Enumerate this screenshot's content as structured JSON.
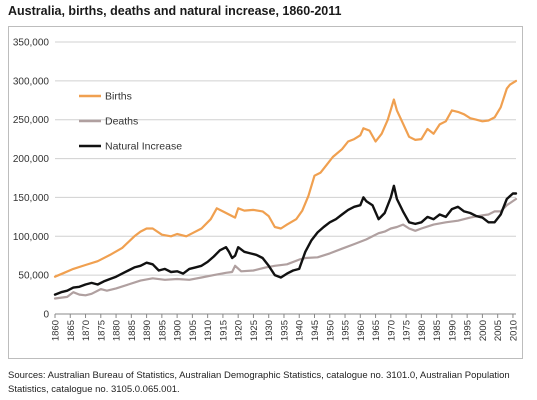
{
  "title": "Australia, births, deaths and natural increase, 1860-2011",
  "source": "Sources: Australian Bureau of Statistics, Australian Demographic Statistics, catalogue no. 3101.0, Australian Population Statistics, catalogue no. 3105.0.065.001.",
  "chart_data": {
    "type": "line",
    "title": "Australia, births, deaths and natural increase, 1860-2011",
    "xlabel": "",
    "ylabel": "",
    "xlim": [
      1860,
      2011
    ],
    "ylim": [
      0,
      350000
    ],
    "yticks": [
      0,
      50000,
      100000,
      150000,
      200000,
      250000,
      300000,
      350000
    ],
    "ytick_labels": [
      "0",
      "50,000",
      "100,000",
      "150,000",
      "200,000",
      "250,000",
      "300,000",
      "350,000"
    ],
    "xticks": [
      1860,
      1865,
      1870,
      1875,
      1880,
      1885,
      1890,
      1895,
      1900,
      1905,
      1910,
      1915,
      1920,
      1925,
      1930,
      1935,
      1940,
      1945,
      1950,
      1955,
      1960,
      1965,
      1970,
      1975,
      1980,
      1985,
      1990,
      1995,
      2000,
      2005,
      2010
    ],
    "grid": "horizontal",
    "legend": "inside-top-left",
    "series": [
      {
        "name": "Births",
        "color": "#f0a050",
        "x": [
          1860,
          1863,
          1866,
          1870,
          1874,
          1878,
          1882,
          1886,
          1888,
          1890,
          1892,
          1895,
          1898,
          1900,
          1903,
          1905,
          1908,
          1911,
          1913,
          1915,
          1917,
          1919,
          1920,
          1922,
          1925,
          1928,
          1930,
          1932,
          1934,
          1936,
          1939,
          1941,
          1943,
          1945,
          1947,
          1949,
          1951,
          1954,
          1956,
          1958,
          1960,
          1961,
          1963,
          1965,
          1967,
          1969,
          1971,
          1972,
          1974,
          1976,
          1978,
          1980,
          1982,
          1984,
          1986,
          1988,
          1990,
          1992,
          1994,
          1996,
          1998,
          2000,
          2002,
          2004,
          2006,
          2008,
          2009,
          2011
        ],
        "values": [
          48000,
          53000,
          58000,
          63000,
          68000,
          76000,
          85000,
          100000,
          106000,
          110000,
          110000,
          102000,
          100000,
          103000,
          100000,
          104000,
          110000,
          122000,
          136000,
          132000,
          128000,
          124000,
          136000,
          133000,
          134000,
          132000,
          126000,
          112000,
          110000,
          115000,
          122000,
          133000,
          152000,
          178000,
          182000,
          192000,
          202000,
          212000,
          222000,
          225000,
          230000,
          239000,
          236000,
          222000,
          232000,
          250000,
          276000,
          262000,
          245000,
          228000,
          224000,
          225000,
          238000,
          232000,
          244000,
          248000,
          262000,
          260000,
          257000,
          252000,
          250000,
          248000,
          249000,
          253000,
          266000,
          290000,
          295000,
          300000
        ]
      },
      {
        "name": "Deaths",
        "color": "#b0a0a0",
        "x": [
          1860,
          1864,
          1866,
          1868,
          1870,
          1872,
          1875,
          1877,
          1880,
          1884,
          1888,
          1892,
          1896,
          1900,
          1904,
          1908,
          1912,
          1916,
          1918,
          1919,
          1921,
          1925,
          1929,
          1932,
          1936,
          1940,
          1942,
          1946,
          1950,
          1954,
          1958,
          1962,
          1966,
          1968,
          1970,
          1972,
          1974,
          1976,
          1978,
          1980,
          1984,
          1988,
          1992,
          1996,
          2000,
          2002,
          2004,
          2006,
          2008,
          2011
        ],
        "values": [
          20000,
          22000,
          28000,
          25000,
          24000,
          26000,
          32000,
          30000,
          33000,
          38000,
          43000,
          46000,
          44000,
          45000,
          44000,
          47000,
          50000,
          53000,
          54000,
          62000,
          55000,
          56000,
          60000,
          62000,
          64000,
          70000,
          72000,
          73000,
          78000,
          84000,
          90000,
          96000,
          104000,
          106000,
          110000,
          112000,
          115000,
          110000,
          107000,
          110000,
          115000,
          118000,
          120000,
          124000,
          127000,
          128000,
          132000,
          132000,
          140000,
          148000
        ]
      },
      {
        "name": "Natural Increase",
        "color": "#111111",
        "x": [
          1860,
          1862,
          1864,
          1866,
          1868,
          1870,
          1872,
          1874,
          1876,
          1878,
          1880,
          1882,
          1884,
          1886,
          1888,
          1890,
          1892,
          1894,
          1896,
          1898,
          1900,
          1902,
          1904,
          1906,
          1908,
          1910,
          1912,
          1914,
          1916,
          1917,
          1918,
          1919,
          1920,
          1922,
          1924,
          1926,
          1928,
          1930,
          1932,
          1934,
          1936,
          1938,
          1940,
          1942,
          1944,
          1946,
          1948,
          1950,
          1952,
          1954,
          1956,
          1958,
          1960,
          1961,
          1962,
          1964,
          1966,
          1968,
          1970,
          1971,
          1972,
          1974,
          1976,
          1978,
          1980,
          1982,
          1984,
          1986,
          1988,
          1990,
          1992,
          1994,
          1996,
          1998,
          2000,
          2002,
          2004,
          2006,
          2008,
          2010,
          2011
        ],
        "values": [
          25000,
          28000,
          30000,
          34000,
          35000,
          38000,
          40000,
          38000,
          42000,
          45000,
          48000,
          52000,
          56000,
          60000,
          62000,
          66000,
          64000,
          56000,
          58000,
          54000,
          55000,
          52000,
          58000,
          60000,
          62000,
          67000,
          74000,
          82000,
          86000,
          80000,
          72000,
          75000,
          86000,
          80000,
          78000,
          76000,
          72000,
          62000,
          50000,
          47000,
          52000,
          56000,
          58000,
          80000,
          95000,
          105000,
          112000,
          118000,
          122000,
          128000,
          134000,
          138000,
          140000,
          150000,
          145000,
          140000,
          122000,
          130000,
          150000,
          165000,
          148000,
          132000,
          118000,
          116000,
          118000,
          125000,
          122000,
          128000,
          125000,
          135000,
          138000,
          132000,
          130000,
          126000,
          124000,
          118000,
          118000,
          128000,
          148000,
          155000,
          155000
        ]
      }
    ]
  }
}
